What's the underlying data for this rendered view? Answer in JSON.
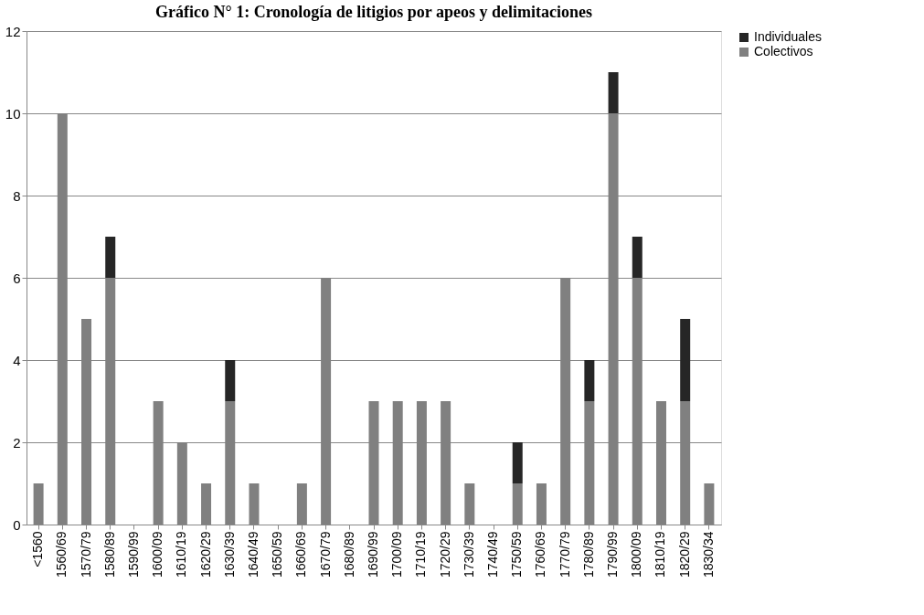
{
  "chart_data": {
    "type": "bar",
    "title": "Gráfico N° 1: Cronología de litigios por apeos y delimitaciones",
    "stacked": true,
    "categories": [
      "<1560",
      "1560/69",
      "1570/79",
      "1580/89",
      "1590/99",
      "1600/09",
      "1610/19",
      "1620/29",
      "1630/39",
      "1640/49",
      "1650/59",
      "1660/69",
      "1670/79",
      "1680/89",
      "1690/99",
      "1700/09",
      "1710/19",
      "1720/29",
      "1730/39",
      "1740/49",
      "1750/59",
      "1760/69",
      "1770/79",
      "1780/89",
      "1790/99",
      "1800/09",
      "1810/19",
      "1820/29",
      "1830/34"
    ],
    "series": [
      {
        "name": "Colectivos",
        "color": "#808080",
        "values": [
          1,
          10,
          5,
          6,
          0,
          3,
          2,
          1,
          3,
          1,
          0,
          1,
          6,
          0,
          3,
          3,
          3,
          3,
          1,
          0,
          1,
          1,
          6,
          3,
          10,
          6,
          3,
          3,
          1
        ]
      },
      {
        "name": "Individuales",
        "color": "#262626",
        "values": [
          0,
          0,
          0,
          1,
          0,
          0,
          0,
          0,
          1,
          0,
          0,
          0,
          0,
          0,
          0,
          0,
          0,
          0,
          0,
          0,
          1,
          0,
          0,
          1,
          1,
          1,
          0,
          2,
          0
        ]
      }
    ],
    "ylim": [
      0,
      12
    ],
    "yticks": [
      0,
      2,
      4,
      6,
      8,
      10,
      12
    ],
    "grid": "y",
    "legend": "right"
  }
}
